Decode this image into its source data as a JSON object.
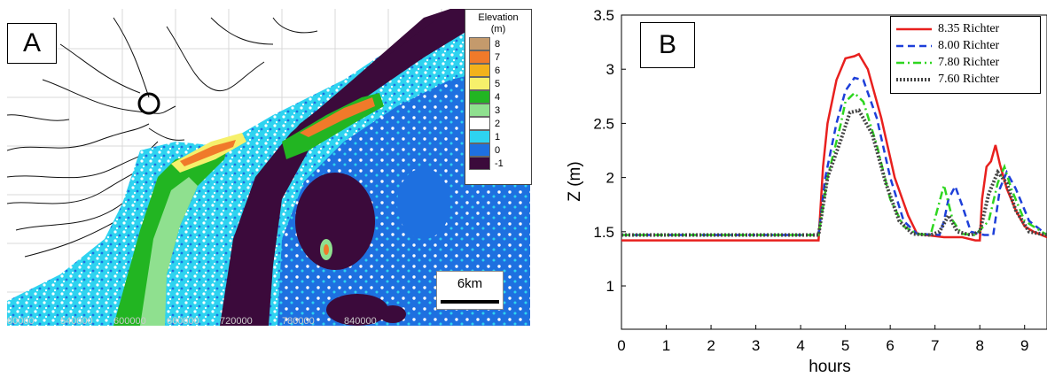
{
  "panel_a": {
    "label": "A",
    "legend_title_line1": "Elevation",
    "legend_title_line2": "(m)",
    "legend": [
      {
        "label": "8",
        "color": "#c49a6c"
      },
      {
        "label": "7",
        "color": "#f07a2a"
      },
      {
        "label": "6",
        "color": "#f2b21c"
      },
      {
        "label": "5",
        "color": "#f6f06b"
      },
      {
        "label": "4",
        "color": "#22b522"
      },
      {
        "label": "3",
        "color": "#8fe08f"
      },
      {
        "label": "2",
        "color": "#ffffff"
      },
      {
        "label": "1",
        "color": "#2ed3f0"
      },
      {
        "label": "0",
        "color": "#1e70e0"
      },
      {
        "label": "-1",
        "color": "#3b0a3b"
      }
    ],
    "scale_label": "6km",
    "x_ticks": [
      "80000",
      "540000",
      "600000",
      "660000",
      "720000",
      "780000",
      "840000"
    ]
  },
  "chart_data": {
    "type": "line",
    "label": "B",
    "xlabel": "hours",
    "ylabel": "Z (m)",
    "xlim": [
      0,
      9.5
    ],
    "ylim": [
      0.6,
      3.5
    ],
    "x_ticks": [
      0,
      1,
      2,
      3,
      4,
      5,
      6,
      7,
      8,
      9
    ],
    "y_ticks": [
      1,
      1.5,
      2,
      2.5,
      3,
      3.5
    ],
    "y_tick_labels": [
      "1",
      "1.5",
      "2",
      "2.5",
      "3",
      "3.5"
    ],
    "legend_position": "top-right",
    "series": [
      {
        "name": "8.35 Richter",
        "color": "#e8201e",
        "style": "solid",
        "x": [
          0,
          4.4,
          4.5,
          4.6,
          4.8,
          5.0,
          5.2,
          5.3,
          5.5,
          5.8,
          6.1,
          6.4,
          6.6,
          7.2,
          7.6,
          7.9,
          8.0,
          8.05,
          8.15,
          8.25,
          8.35,
          8.45,
          8.6,
          8.8,
          9.0,
          9.2,
          9.5
        ],
        "y": [
          1.42,
          1.42,
          2.1,
          2.5,
          2.9,
          3.1,
          3.12,
          3.14,
          3.0,
          2.55,
          2.0,
          1.65,
          1.48,
          1.45,
          1.45,
          1.42,
          1.42,
          1.8,
          2.1,
          2.15,
          2.3,
          2.12,
          1.9,
          1.7,
          1.55,
          1.5,
          1.45
        ]
      },
      {
        "name": "8.00 Richter",
        "color": "#1d3fd9",
        "style": "dashed",
        "x": [
          0,
          4.4,
          4.55,
          4.8,
          5.0,
          5.2,
          5.4,
          5.7,
          6.0,
          6.3,
          6.6,
          7.1,
          7.2,
          7.3,
          7.45,
          7.6,
          7.8,
          8.1,
          8.3,
          8.45,
          8.6,
          8.8,
          9.1,
          9.5
        ],
        "y": [
          1.47,
          1.47,
          2.0,
          2.5,
          2.8,
          2.92,
          2.9,
          2.55,
          2.0,
          1.6,
          1.48,
          1.47,
          1.6,
          1.8,
          1.92,
          1.75,
          1.5,
          1.47,
          1.47,
          1.9,
          2.05,
          1.9,
          1.6,
          1.47
        ]
      },
      {
        "name": "7.80 Richter",
        "color": "#2ed620",
        "style": "dashdot",
        "x": [
          0,
          4.4,
          4.6,
          4.9,
          5.0,
          5.2,
          5.4,
          5.7,
          6.0,
          6.3,
          6.6,
          6.9,
          7.05,
          7.2,
          7.4,
          7.6,
          7.9,
          8.2,
          8.4,
          8.55,
          8.7,
          9.0,
          9.5
        ],
        "y": [
          1.47,
          1.47,
          2.0,
          2.5,
          2.7,
          2.78,
          2.7,
          2.3,
          1.8,
          1.55,
          1.48,
          1.47,
          1.7,
          1.93,
          1.6,
          1.48,
          1.47,
          1.6,
          1.95,
          2.1,
          1.9,
          1.6,
          1.47
        ]
      },
      {
        "name": "7.60 Richter",
        "color": "#444444",
        "style": "dotted",
        "x": [
          0,
          4.4,
          4.6,
          4.9,
          5.1,
          5.3,
          5.6,
          5.9,
          6.2,
          6.5,
          6.9,
          7.1,
          7.3,
          7.5,
          7.8,
          8.0,
          8.2,
          8.4,
          8.6,
          8.8,
          9.1,
          9.5
        ],
        "y": [
          1.47,
          1.47,
          2.0,
          2.35,
          2.6,
          2.62,
          2.4,
          1.95,
          1.6,
          1.48,
          1.47,
          1.5,
          1.65,
          1.5,
          1.47,
          1.5,
          1.85,
          2.05,
          1.95,
          1.7,
          1.5,
          1.47
        ]
      }
    ]
  }
}
